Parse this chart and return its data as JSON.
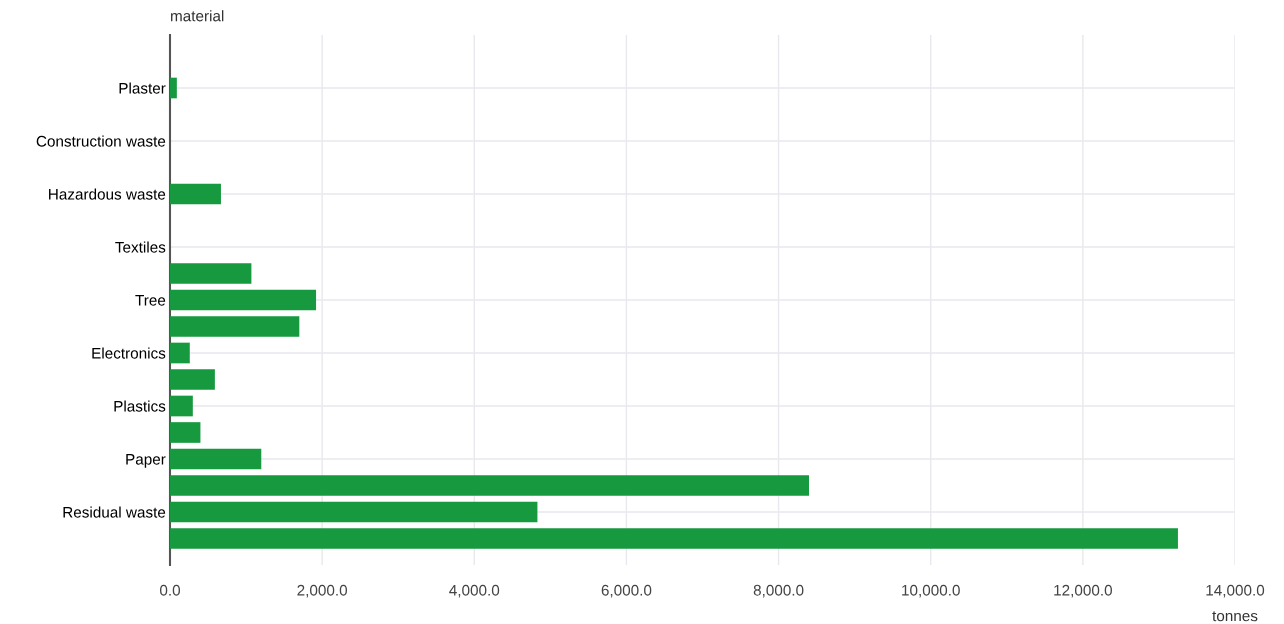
{
  "chart_data": {
    "type": "bar",
    "orientation": "horizontal",
    "xlabel": "tonnes",
    "ylabel": "material",
    "categories": [
      "Plaster",
      null,
      "Construction waste",
      null,
      "Hazardous waste",
      null,
      "Textiles",
      null,
      "Tree",
      null,
      "Electronics",
      null,
      "Plastics",
      null,
      "Paper",
      null,
      "Residual waste",
      null
    ],
    "values": [
      90,
      null,
      null,
      null,
      670,
      null,
      null,
      1070,
      1920,
      1700,
      260,
      590,
      300,
      400,
      1200,
      8400,
      4830,
      13250
    ],
    "color": "#17993f",
    "xlim": [
      0,
      14000
    ],
    "xticks": [
      {
        "value": 0,
        "label": "0.0"
      },
      {
        "value": 2000,
        "label": "2,000.0"
      },
      {
        "value": 4000,
        "label": "4,000.0"
      },
      {
        "value": 6000,
        "label": "6,000.0"
      },
      {
        "value": 8000,
        "label": "8,000.0"
      },
      {
        "value": 10000,
        "label": "10,000.0"
      },
      {
        "value": 12000,
        "label": "12,000.0"
      },
      {
        "value": 14000,
        "label": "14,000.0"
      }
    ],
    "grid": true,
    "legend": false
  }
}
